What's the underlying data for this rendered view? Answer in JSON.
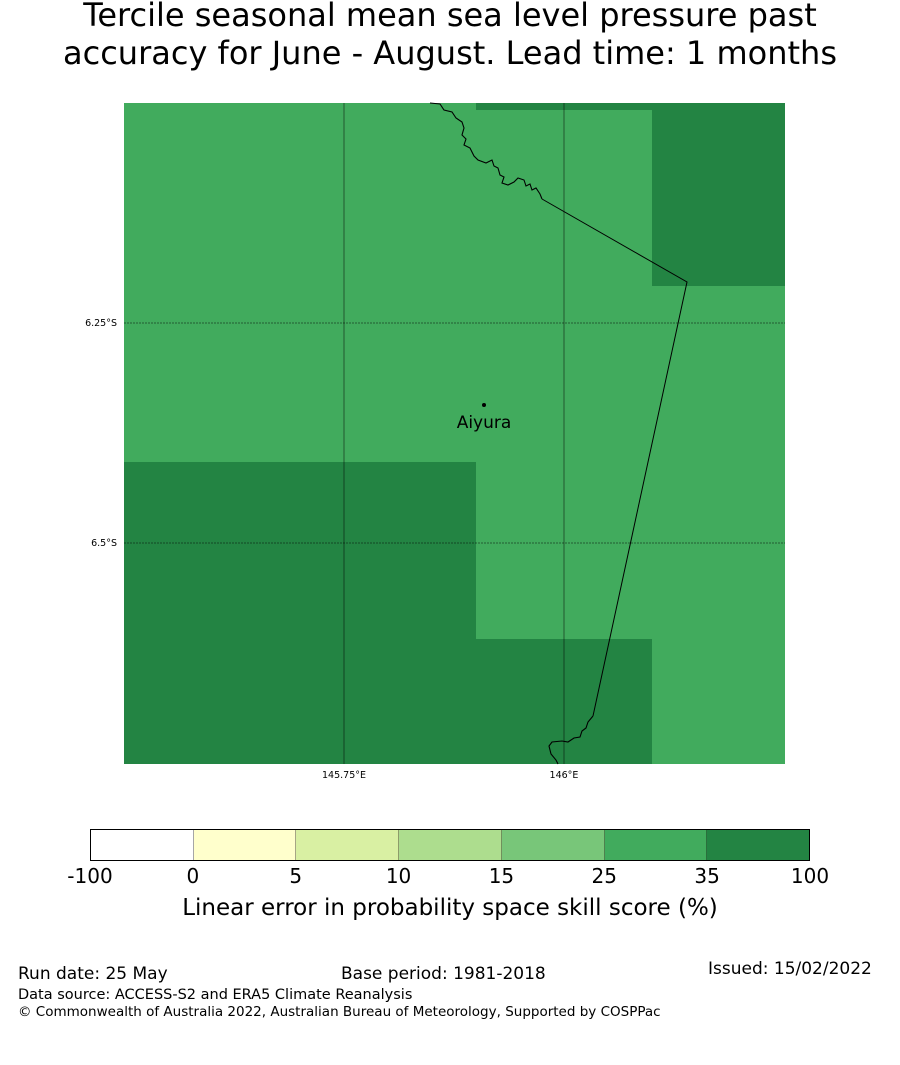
{
  "title": {
    "line1": "Tercile seasonal mean sea level pressure past",
    "line2": "accuracy for June - August. Lead time: 1 months"
  },
  "map": {
    "lat_labels": [
      "6.25°S",
      "6.5°S"
    ],
    "lon_labels": [
      "145.75°E",
      "146°E"
    ],
    "place": "Aiyura",
    "colors": {
      "dark_green": "#238443",
      "mid_green": "#41ab5d"
    }
  },
  "colorbar": {
    "colors": [
      "#ffffff",
      "#ffffcc",
      "#d9f0a3",
      "#addd8e",
      "#78c679",
      "#41ab5d",
      "#238443"
    ],
    "ticks": [
      "-100",
      "0",
      "5",
      "10",
      "15",
      "25",
      "35",
      "100"
    ],
    "label": "Linear error in probability space skill score (%)"
  },
  "footer": {
    "run_date": "Run date: 25 May",
    "base_period": "Base period: 1981-2018",
    "issued": "Issued: 15/02/2022",
    "data_source": "Data source: ACCESS-S2 and ERA5 Climate Reanalysis",
    "copyright": "© Commonwealth of Australia 2022, Australian Bureau of Meteorology, Supported by COSPPac"
  }
}
